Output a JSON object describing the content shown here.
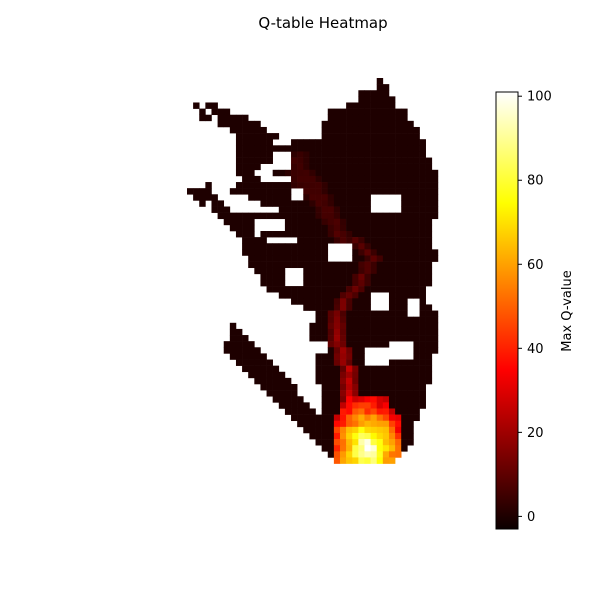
{
  "chart_data": {
    "type": "heatmap",
    "title": "Q-table Heatmap",
    "colorbar": {
      "label": "Max Q-value",
      "ticks": [
        0,
        20,
        40,
        60,
        80,
        100
      ],
      "range": [
        -3,
        101
      ],
      "colormap": "hot"
    },
    "grid": false,
    "axes_visible": false,
    "blank_value": null,
    "legend": "colorbar on right",
    "row_ranges": [
      [
        [
          31,
          31
        ]
      ],
      [
        [
          31,
          32
        ]
      ],
      [
        [
          28,
          32
        ]
      ],
      [
        [
          28,
          33
        ]
      ],
      [
        [
          1,
          1
        ],
        [
          3,
          4
        ],
        [
          26,
          33
        ]
      ],
      [
        [
          2,
          2
        ],
        [
          4,
          6
        ],
        [
          23,
          35
        ]
      ],
      [
        [
          2,
          3
        ],
        [
          5,
          9
        ],
        [
          23,
          35
        ]
      ],
      [
        [
          5,
          11
        ],
        [
          19,
          19
        ],
        [
          22,
          36
        ]
      ],
      [
        [
          7,
          12
        ],
        [
          21,
          37
        ]
      ],
      [
        [
          8,
          14
        ],
        [
          19,
          37
        ]
      ],
      [
        [
          8,
          13
        ],
        [
          17,
          38
        ]
      ],
      [
        [
          8,
          38
        ]
      ],
      [
        [
          8,
          38
        ]
      ],
      [
        [
          8,
          39
        ]
      ],
      [
        [
          8,
          39
        ]
      ],
      [
        [
          8,
          10
        ],
        [
          14,
          40
        ]
      ],
      [
        [
          9,
          11
        ],
        [
          17,
          40
        ]
      ],
      [
        [
          3,
          3
        ],
        [
          8,
          40
        ]
      ],
      [
        [
          0,
          3
        ],
        [
          7,
          40
        ]
      ],
      [
        [
          1,
          4
        ],
        [
          10,
          40
        ]
      ],
      [
        [
          2,
          2
        ],
        [
          4,
          5
        ],
        [
          12,
          40
        ]
      ],
      [
        [
          4,
          6
        ],
        [
          15,
          40
        ]
      ],
      [
        [
          5,
          40
        ]
      ],
      [
        [
          6,
          10
        ],
        [
          16,
          39
        ]
      ],
      [
        [
          7,
          10
        ],
        [
          16,
          39
        ]
      ],
      [
        [
          8,
          10
        ],
        [
          12,
          39
        ]
      ],
      [
        [
          9,
          12
        ],
        [
          18,
          39
        ]
      ],
      [
        [
          9,
          39
        ]
      ],
      [
        [
          9,
          40
        ]
      ],
      [
        [
          10,
          40
        ]
      ],
      [
        [
          10,
          39
        ]
      ],
      [
        [
          11,
          39
        ]
      ],
      [
        [
          12,
          39
        ]
      ],
      [
        [
          12,
          39
        ]
      ],
      [
        [
          13,
          38
        ]
      ],
      [
        [
          15,
          38
        ]
      ],
      [
        [
          17,
          38
        ]
      ],
      [
        [
          19,
          39
        ]
      ],
      [
        [
          21,
          40
        ]
      ],
      [
        [
          21,
          40
        ]
      ],
      [
        [
          7,
          7
        ],
        [
          20,
          40
        ]
      ],
      [
        [
          7,
          8
        ],
        [
          20,
          40
        ]
      ],
      [
        [
          7,
          9
        ],
        [
          20,
          40
        ]
      ],
      [
        [
          6,
          10
        ],
        [
          21,
          40
        ]
      ],
      [
        [
          6,
          11
        ],
        [
          21,
          40
        ]
      ],
      [
        [
          7,
          12
        ],
        [
          21,
          39
        ]
      ],
      [
        [
          8,
          13
        ],
        [
          21,
          39
        ]
      ],
      [
        [
          9,
          14
        ],
        [
          21,
          39
        ]
      ],
      [
        [
          10,
          15
        ],
        [
          21,
          39
        ]
      ],
      [
        [
          11,
          16
        ],
        [
          21,
          39
        ]
      ],
      [
        [
          12,
          17
        ],
        [
          22,
          38
        ]
      ],
      [
        [
          13,
          17
        ],
        [
          22,
          38
        ]
      ],
      [
        [
          14,
          18
        ],
        [
          22,
          38
        ]
      ],
      [
        [
          15,
          19
        ],
        [
          22,
          38
        ]
      ],
      [
        [
          16,
          20
        ],
        [
          22,
          37
        ]
      ],
      [
        [
          17,
          21
        ],
        [
          22,
          37
        ]
      ],
      [
        [
          18,
          36
        ]
      ],
      [
        [
          19,
          36
        ]
      ],
      [
        [
          20,
          36
        ]
      ],
      [
        [
          21,
          36
        ]
      ],
      [
        [
          22,
          35
        ]
      ],
      [
        [
          23,
          34
        ]
      ],
      [
        [
          24,
          33
        ]
      ]
    ],
    "holes": [
      [
        19,
        7,
        21,
        9
      ],
      [
        12,
        14,
        13,
        15
      ],
      [
        14,
        12,
        16,
        14
      ],
      [
        30,
        19,
        34,
        21
      ],
      [
        23,
        27,
        25,
        29
      ],
      [
        16,
        31,
        18,
        33
      ],
      [
        24,
        27,
        26,
        29
      ],
      [
        30,
        35,
        32,
        37
      ],
      [
        29,
        44,
        32,
        46
      ],
      [
        36,
        36,
        37,
        38
      ],
      [
        20,
        43,
        22,
        44
      ],
      [
        33,
        43,
        36,
        45
      ],
      [
        17,
        40,
        19,
        42
      ],
      [
        14,
        45,
        17,
        46
      ],
      [
        17,
        18,
        18,
        19
      ]
    ],
    "path": [
      [
        18,
        12,
        14
      ],
      [
        17,
        13,
        16
      ],
      [
        18,
        14,
        17
      ],
      [
        19,
        15,
        18
      ],
      [
        20,
        16,
        19
      ],
      [
        21,
        17,
        19
      ],
      [
        21,
        18,
        20
      ],
      [
        22,
        19,
        21
      ],
      [
        22,
        20,
        22
      ],
      [
        23,
        21,
        22
      ],
      [
        23,
        22,
        23
      ],
      [
        24,
        23,
        24
      ],
      [
        24,
        24,
        25
      ],
      [
        25,
        25,
        26
      ],
      [
        27,
        26,
        26
      ],
      [
        28,
        27,
        27
      ],
      [
        29,
        28,
        28
      ],
      [
        30,
        29,
        29
      ],
      [
        29,
        30,
        30
      ],
      [
        29,
        31,
        31
      ],
      [
        28,
        32,
        32
      ],
      [
        28,
        33,
        33
      ],
      [
        27,
        34,
        34
      ],
      [
        26,
        35,
        35
      ],
      [
        25,
        36,
        36
      ],
      [
        25,
        37,
        37
      ],
      [
        24,
        38,
        38
      ],
      [
        24,
        39,
        39
      ],
      [
        24,
        40,
        40
      ],
      [
        24,
        41,
        41
      ],
      [
        24,
        42,
        42
      ],
      [
        24,
        43,
        43
      ],
      [
        25,
        44,
        44
      ],
      [
        25,
        45,
        45
      ],
      [
        25,
        46,
        46
      ],
      [
        26,
        47,
        47
      ],
      [
        26,
        48,
        48
      ],
      [
        26,
        49,
        49
      ],
      [
        26,
        50,
        50
      ],
      [
        26,
        51,
        52
      ],
      [
        26,
        53,
        54
      ],
      [
        27,
        55,
        56
      ],
      [
        27,
        57,
        58
      ],
      [
        28,
        59,
        60
      ],
      [
        28,
        61,
        62
      ]
    ],
    "bright_blob": {
      "rows": [
        51,
        62
      ],
      "peak": [
        29,
        60
      ],
      "max": 101
    }
  }
}
